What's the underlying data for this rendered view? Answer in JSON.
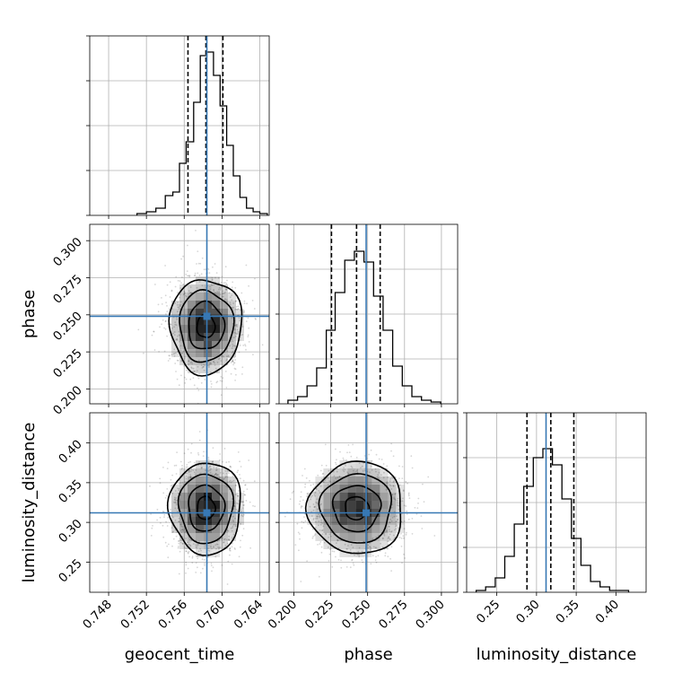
{
  "chart_data": {
    "type": "corner",
    "grid": true,
    "parameters": [
      {
        "name": "geocent_time",
        "label": "geocent_time",
        "range": [
          0.746,
          0.765
        ],
        "ticks": [
          0.748,
          0.752,
          0.756,
          0.76,
          0.764
        ],
        "tick_labels": [
          "0.748",
          "0.752",
          "0.756",
          "0.760",
          "0.764"
        ],
        "truth": 0.7584,
        "quantiles": [
          0.7564,
          0.7583,
          0.7601
        ],
        "mean": 0.7583,
        "sigma": 0.0019,
        "hist_edges": [
          0.751,
          0.752,
          0.753,
          0.754,
          0.7548,
          0.7555,
          0.7562,
          0.757,
          0.7577,
          0.7584,
          0.7591,
          0.7598,
          0.7605,
          0.7612,
          0.7619,
          0.7626,
          0.7633,
          0.764,
          0.7648
        ],
        "hist_counts": [
          0.01,
          0.02,
          0.04,
          0.11,
          0.13,
          0.29,
          0.41,
          0.63,
          0.89,
          0.91,
          0.78,
          0.61,
          0.39,
          0.22,
          0.1,
          0.04,
          0.02,
          0.01
        ]
      },
      {
        "name": "phase",
        "label": "phase",
        "range": [
          0.19,
          0.311
        ],
        "ticks": [
          0.2,
          0.225,
          0.25,
          0.275,
          0.3
        ],
        "tick_labels": [
          "0.200",
          "0.225",
          "0.250",
          "0.275",
          "0.300"
        ],
        "truth": 0.249,
        "quantiles": [
          0.2255,
          0.2425,
          0.2585
        ],
        "mean": 0.2425,
        "sigma": 0.016,
        "hist_edges": [
          0.196,
          0.2025,
          0.209,
          0.2155,
          0.222,
          0.228,
          0.2345,
          0.241,
          0.2475,
          0.254,
          0.2605,
          0.267,
          0.2735,
          0.28,
          0.2865,
          0.293,
          0.2995
        ],
        "hist_counts": [
          0.02,
          0.04,
          0.1,
          0.2,
          0.41,
          0.62,
          0.8,
          0.85,
          0.79,
          0.6,
          0.41,
          0.21,
          0.1,
          0.04,
          0.02,
          0.01
        ]
      },
      {
        "name": "luminosity_distance",
        "label": "luminosity_distance",
        "range": [
          0.212,
          0.438
        ],
        "ticks": [
          0.25,
          0.3,
          0.35,
          0.4
        ],
        "tick_labels": [
          "0.25",
          "0.30",
          "0.35",
          "0.40"
        ],
        "truth": 0.312,
        "quantiles": [
          0.288,
          0.318,
          0.347
        ],
        "mean": 0.318,
        "sigma": 0.029,
        "hist_edges": [
          0.224,
          0.236,
          0.248,
          0.26,
          0.272,
          0.284,
          0.296,
          0.308,
          0.32,
          0.332,
          0.344,
          0.356,
          0.368,
          0.38,
          0.392,
          0.404,
          0.416
        ],
        "hist_counts": [
          0.01,
          0.03,
          0.08,
          0.2,
          0.38,
          0.59,
          0.75,
          0.8,
          0.71,
          0.52,
          0.3,
          0.15,
          0.06,
          0.03,
          0.01,
          0.01
        ]
      }
    ],
    "pairs": [
      {
        "x": "geocent_time",
        "y": "phase",
        "center": [
          0.7583,
          0.2425
        ]
      },
      {
        "x": "geocent_time",
        "y": "luminosity_distance",
        "center": [
          0.7583,
          0.318
        ]
      },
      {
        "x": "phase",
        "y": "luminosity_distance",
        "center": [
          0.2425,
          0.318
        ]
      }
    ],
    "contour_sigma_levels": [
      0.5,
      1.0,
      1.5,
      2.0
    ],
    "truth_color": "#3778b4",
    "contour_color": "#000000",
    "grid_color": "#b0b0b0"
  }
}
